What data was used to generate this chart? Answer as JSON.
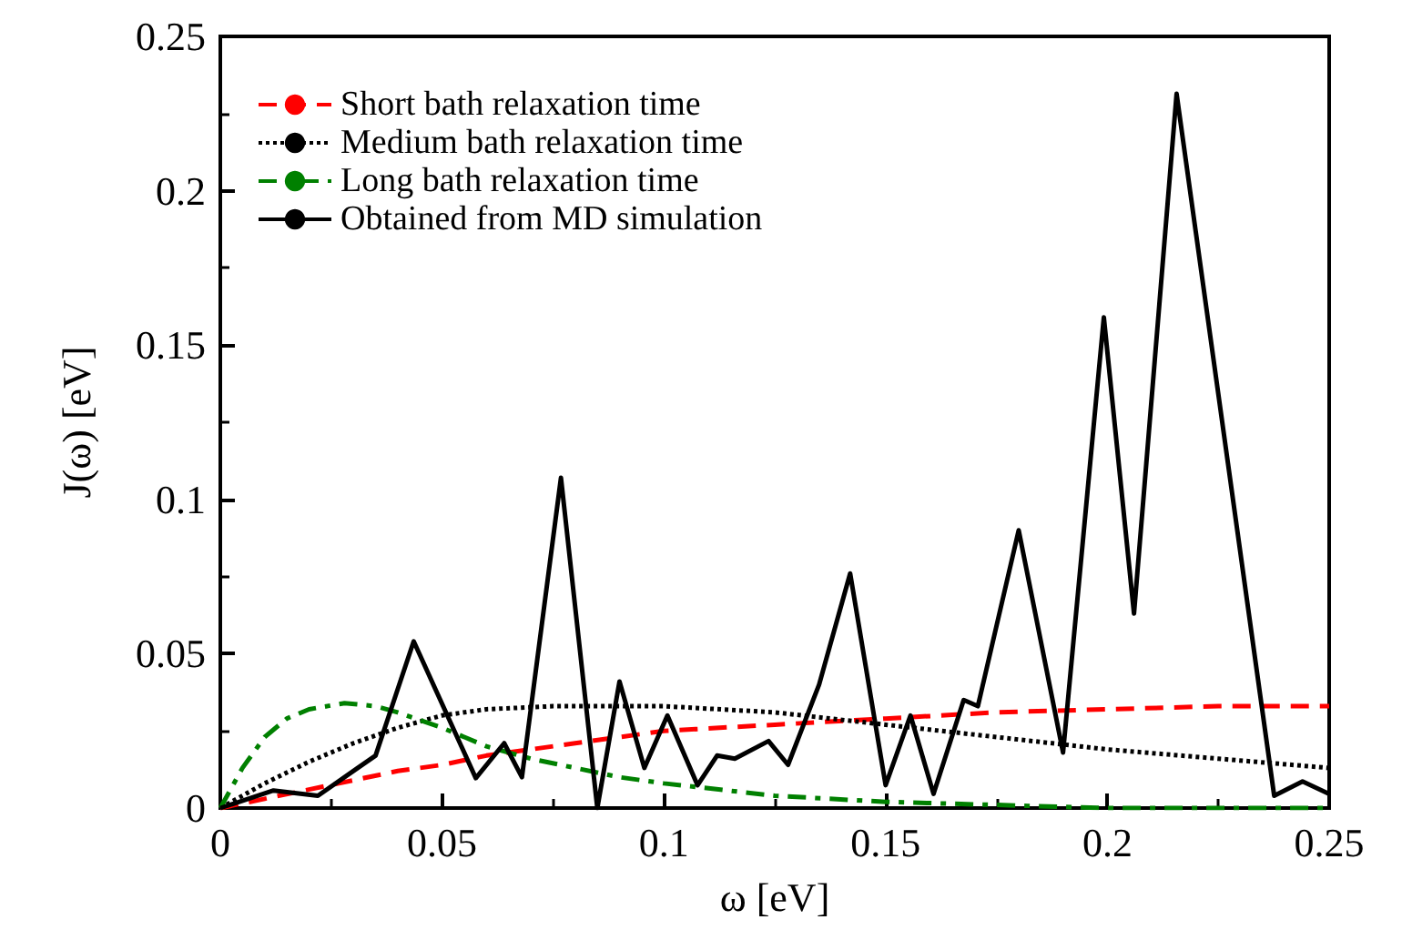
{
  "chart_data": {
    "type": "line",
    "xlabel": "ω [eV]",
    "ylabel": "J(ω) [eV]",
    "xlim": [
      0,
      0.25
    ],
    "ylim": [
      0,
      0.25
    ],
    "xticks": [
      0,
      0.05,
      0.1,
      0.15,
      0.2,
      0.25
    ],
    "yticks": [
      0,
      0.05,
      0.1,
      0.15,
      0.2,
      0.25
    ],
    "grid": false,
    "legend": "top left",
    "marker": "none",
    "series": [
      {
        "name": "Short bath relaxation time",
        "color": "#ff0000",
        "line_style": "dashed",
        "x": [
          0,
          0.01,
          0.02,
          0.03,
          0.04,
          0.05,
          0.06,
          0.07,
          0.08,
          0.09,
          0.1,
          0.125,
          0.15,
          0.175,
          0.2,
          0.225,
          0.25
        ],
        "values": [
          0,
          0.003,
          0.006,
          0.009,
          0.012,
          0.014,
          0.017,
          0.019,
          0.021,
          0.023,
          0.025,
          0.027,
          0.029,
          0.031,
          0.032,
          0.033,
          0.033
        ]
      },
      {
        "name": "Medium bath relaxation time",
        "color": "#000000",
        "line_style": "dotted",
        "x": [
          0,
          0.01,
          0.02,
          0.03,
          0.04,
          0.05,
          0.06,
          0.075,
          0.09,
          0.1,
          0.125,
          0.15,
          0.175,
          0.2,
          0.225,
          0.25
        ],
        "values": [
          0,
          0.008,
          0.015,
          0.021,
          0.026,
          0.03,
          0.032,
          0.033,
          0.033,
          0.033,
          0.031,
          0.027,
          0.023,
          0.019,
          0.016,
          0.013
        ]
      },
      {
        "name": "Long bath relaxation time",
        "color": "#008000",
        "line_style": "dashdot",
        "x": [
          0,
          0.005,
          0.01,
          0.015,
          0.02,
          0.028,
          0.035,
          0.04,
          0.05,
          0.06,
          0.07,
          0.08,
          0.09,
          0.1,
          0.125,
          0.15,
          0.175,
          0.2,
          0.25
        ],
        "values": [
          0,
          0.013,
          0.023,
          0.029,
          0.032,
          0.034,
          0.033,
          0.031,
          0.026,
          0.02,
          0.016,
          0.013,
          0.01,
          0.008,
          0.004,
          0.002,
          0.001,
          0,
          0
        ]
      },
      {
        "name": "Obtained from MD simulation",
        "color": "#000000",
        "line_style": "solid",
        "x": [
          0,
          0.012,
          0.022,
          0.031,
          0.035,
          0.0436,
          0.0576,
          0.064,
          0.068,
          0.0768,
          0.085,
          0.09,
          0.0956,
          0.1008,
          0.1076,
          0.112,
          0.116,
          0.1236,
          0.128,
          0.135,
          0.142,
          0.15,
          0.1556,
          0.1608,
          0.1676,
          0.1708,
          0.18,
          0.19,
          0.1992,
          0.206,
          0.2156,
          0.2376,
          0.244,
          0.25
        ],
        "values": [
          0,
          0.0057,
          0.004,
          0.013,
          0.017,
          0.054,
          0.0097,
          0.021,
          0.01,
          0.107,
          0,
          0.041,
          0.013,
          0.03,
          0.0074,
          0.017,
          0.016,
          0.0217,
          0.014,
          0.04,
          0.076,
          0.0074,
          0.03,
          0.0046,
          0.035,
          0.033,
          0.09,
          0.018,
          0.159,
          0.063,
          0.2314,
          0.004,
          0.0086,
          0.0046
        ]
      }
    ]
  }
}
